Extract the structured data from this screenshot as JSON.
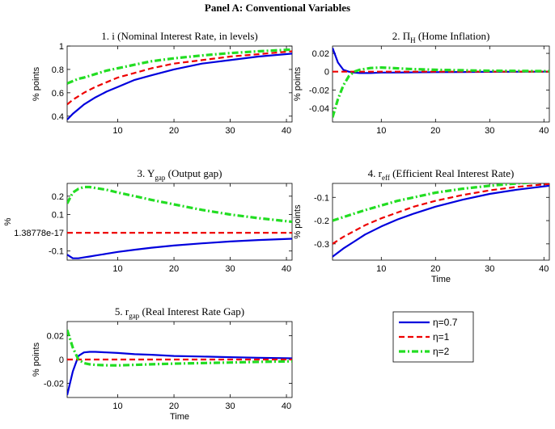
{
  "figure_title": "Panel A: Conventional Variables",
  "legend": [
    {
      "label": "η=0.7",
      "color": "#0000dd",
      "dash": "solid"
    },
    {
      "label": "η=1",
      "color": "#ee0000",
      "dash": "dashed"
    },
    {
      "label": "η=2",
      "color": "#22dd22",
      "dash": "dashdot"
    }
  ],
  "chart_data": [
    {
      "type": "line",
      "title_pre": "1. i",
      "title_sub": "",
      "title_post": "(Nominal Interest Rate, in levels)",
      "xlabel": "",
      "ylabel": "% points",
      "xlim": [
        1,
        41
      ],
      "ylim": [
        0.35,
        1.0
      ],
      "xticks": [
        10,
        20,
        30,
        40
      ],
      "xticklabels": [
        "10",
        "20",
        "30",
        "40"
      ],
      "yticks": [
        0.4,
        0.6,
        0.8,
        1.0
      ],
      "yticklabels": [
        "0.4",
        "0.6",
        "0.8",
        "1"
      ],
      "x": [
        1,
        2,
        3,
        4,
        6,
        8,
        10,
        13,
        16,
        20,
        25,
        30,
        35,
        41
      ],
      "series": [
        {
          "values": [
            0.37,
            0.42,
            0.46,
            0.5,
            0.56,
            0.61,
            0.65,
            0.71,
            0.75,
            0.8,
            0.85,
            0.88,
            0.91,
            0.935
          ]
        },
        {
          "values": [
            0.5,
            0.54,
            0.57,
            0.6,
            0.65,
            0.69,
            0.73,
            0.77,
            0.81,
            0.85,
            0.88,
            0.91,
            0.93,
            0.955
          ]
        },
        {
          "values": [
            0.68,
            0.7,
            0.72,
            0.73,
            0.76,
            0.79,
            0.81,
            0.84,
            0.87,
            0.895,
            0.92,
            0.94,
            0.955,
            0.97
          ]
        }
      ]
    },
    {
      "type": "line",
      "title_pre": "2. Π",
      "title_sub": "H",
      "title_post": "(Home Inflation)",
      "xlabel": "",
      "ylabel": "% points",
      "xlim": [
        1,
        41
      ],
      "ylim": [
        -0.055,
        0.028
      ],
      "xticks": [
        10,
        20,
        30,
        40
      ],
      "xticklabels": [
        "10",
        "20",
        "30",
        "40"
      ],
      "yticks": [
        -0.04,
        -0.02,
        0,
        0.02
      ],
      "yticklabels": [
        "-0.04",
        "-0.02",
        "0",
        "0.02"
      ],
      "x": [
        1,
        2,
        3,
        4,
        5,
        6,
        7,
        8,
        10,
        12,
        15,
        20,
        25,
        30,
        35,
        41
      ],
      "series": [
        {
          "values": [
            0.026,
            0.01,
            0.002,
            0.0,
            -0.001,
            -0.0015,
            -0.0015,
            -0.0015,
            -0.001,
            -0.001,
            -0.0008,
            -0.0005,
            -0.0003,
            -0.0002,
            -0.0001,
            0.0
          ]
        },
        {
          "values": [
            0,
            0,
            0,
            0,
            0,
            0,
            0,
            0,
            0,
            0,
            0,
            0,
            0,
            0,
            0,
            0
          ]
        },
        {
          "values": [
            -0.05,
            -0.03,
            -0.015,
            -0.005,
            0.0,
            0.002,
            0.003,
            0.004,
            0.0045,
            0.004,
            0.003,
            0.002,
            0.0015,
            0.001,
            0.0008,
            0.0005
          ]
        }
      ]
    },
    {
      "type": "line",
      "title_pre": "3. Y",
      "title_sub": "gap",
      "title_post": "(Output gap)",
      "xlabel": "",
      "ylabel": "%",
      "xlim": [
        1,
        41
      ],
      "ylim": [
        -0.15,
        0.27
      ],
      "xticks": [
        10,
        20,
        30,
        40
      ],
      "xticklabels": [
        "10",
        "20",
        "30",
        "40"
      ],
      "yticks": [
        -0.1,
        0,
        0.1,
        0.2
      ],
      "yticklabels": [
        "-0.1",
        "1.38778e-17",
        "0.1",
        "0.2"
      ],
      "x": [
        1,
        2,
        3,
        4,
        5,
        6,
        8,
        10,
        13,
        16,
        20,
        25,
        30,
        35,
        41
      ],
      "series": [
        {
          "values": [
            -0.12,
            -0.14,
            -0.14,
            -0.135,
            -0.13,
            -0.125,
            -0.115,
            -0.105,
            -0.093,
            -0.082,
            -0.07,
            -0.058,
            -0.048,
            -0.04,
            -0.033
          ]
        },
        {
          "values": [
            0,
            0,
            0,
            0,
            0,
            0,
            0,
            0,
            0,
            0,
            0,
            0,
            0,
            0,
            0
          ]
        },
        {
          "values": [
            0.16,
            0.22,
            0.24,
            0.25,
            0.25,
            0.245,
            0.235,
            0.22,
            0.2,
            0.18,
            0.155,
            0.125,
            0.1,
            0.08,
            0.06
          ]
        }
      ]
    },
    {
      "type": "line",
      "title_pre": "4. r",
      "title_sub": "eff",
      "title_post": "(Efficient Real Interest Rate)",
      "xlabel": "Time",
      "ylabel": "% points",
      "xlim": [
        1,
        41
      ],
      "ylim": [
        -0.37,
        -0.04
      ],
      "xticks": [
        10,
        20,
        30,
        40
      ],
      "xticklabels": [
        "10",
        "20",
        "30",
        "40"
      ],
      "yticks": [
        -0.3,
        -0.2,
        -0.1
      ],
      "yticklabels": [
        "-0.3",
        "-0.2",
        "-0.1"
      ],
      "x": [
        1,
        3,
        5,
        7,
        10,
        13,
        16,
        20,
        25,
        30,
        35,
        41
      ],
      "series": [
        {
          "values": [
            -0.355,
            -0.32,
            -0.29,
            -0.26,
            -0.225,
            -0.195,
            -0.17,
            -0.14,
            -0.11,
            -0.085,
            -0.067,
            -0.05
          ]
        },
        {
          "values": [
            -0.3,
            -0.27,
            -0.245,
            -0.22,
            -0.19,
            -0.165,
            -0.14,
            -0.115,
            -0.09,
            -0.07,
            -0.055,
            -0.042
          ]
        },
        {
          "values": [
            -0.2,
            -0.185,
            -0.17,
            -0.155,
            -0.135,
            -0.115,
            -0.1,
            -0.08,
            -0.063,
            -0.05,
            -0.04,
            -0.032
          ]
        }
      ]
    },
    {
      "type": "line",
      "title_pre": "5. r",
      "title_sub": "gap",
      "title_post": "(Real Interest Rate Gap)",
      "xlabel": "Time",
      "ylabel": "% points",
      "xlim": [
        1,
        41
      ],
      "ylim": [
        -0.032,
        0.032
      ],
      "xticks": [
        10,
        20,
        30,
        40
      ],
      "xticklabels": [
        "10",
        "20",
        "30",
        "40"
      ],
      "yticks": [
        -0.02,
        0,
        0.02
      ],
      "yticklabels": [
        "-0.02",
        "0",
        "0.02"
      ],
      "x": [
        1,
        2,
        3,
        4,
        5,
        6,
        8,
        10,
        13,
        16,
        20,
        25,
        30,
        35,
        41
      ],
      "series": [
        {
          "values": [
            -0.03,
            -0.01,
            0.003,
            0.006,
            0.0065,
            0.0065,
            0.006,
            0.0055,
            0.0045,
            0.004,
            0.003,
            0.0025,
            0.002,
            0.0015,
            0.001
          ]
        },
        {
          "values": [
            0,
            0,
            0,
            0,
            0,
            0,
            0,
            0,
            0,
            0,
            0,
            0,
            0,
            0,
            0
          ]
        },
        {
          "values": [
            0.025,
            0.01,
            0.0,
            -0.003,
            -0.004,
            -0.0045,
            -0.0048,
            -0.005,
            -0.0045,
            -0.004,
            -0.0035,
            -0.003,
            -0.0025,
            -0.002,
            -0.0015
          ]
        }
      ]
    }
  ]
}
